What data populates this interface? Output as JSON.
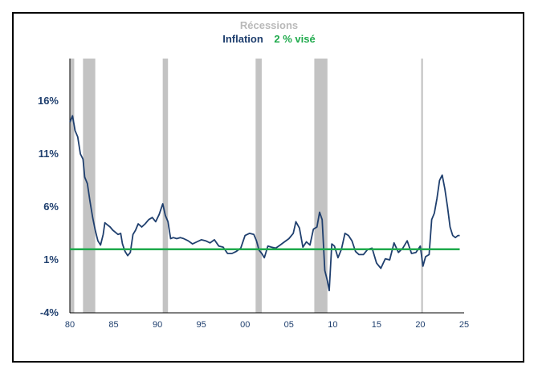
{
  "chart_data": {
    "type": "line",
    "title": "",
    "xlabel": "",
    "ylabel": "",
    "legend": {
      "placement": "top-center",
      "entries": [
        "Récessions",
        "Inflation",
        "2 % visé"
      ]
    },
    "xlim": [
      1980,
      2025
    ],
    "ylim": [
      -4,
      20
    ],
    "x_ticks": [
      1980,
      1985,
      1990,
      1995,
      2000,
      2005,
      2010,
      2015,
      2020,
      2025
    ],
    "x_tick_labels": [
      "80",
      "85",
      "90",
      "95",
      "00",
      "05",
      "10",
      "15",
      "20",
      "25"
    ],
    "y_ticks": [
      -4,
      1,
      6,
      11,
      16
    ],
    "y_tick_labels": [
      "-4%",
      "1%",
      "6%",
      "11%",
      "16%"
    ],
    "grid": false,
    "recessions": [
      {
        "start": 1980.0,
        "end": 1980.5
      },
      {
        "start": 1981.5,
        "end": 1982.9
      },
      {
        "start": 1990.6,
        "end": 1991.2
      },
      {
        "start": 2001.2,
        "end": 2001.9
      },
      {
        "start": 2007.9,
        "end": 2009.4
      },
      {
        "start": 2020.1,
        "end": 2020.3
      }
    ],
    "series": [
      {
        "name": "Inflation",
        "color": "#1f3f6e",
        "x": [
          1980.0,
          1980.3,
          1980.6,
          1980.9,
          1981.2,
          1981.5,
          1981.7,
          1982.0,
          1982.3,
          1982.6,
          1982.9,
          1983.2,
          1983.5,
          1983.8,
          1984.0,
          1984.3,
          1984.6,
          1984.9,
          1985.2,
          1985.5,
          1985.8,
          1986.0,
          1986.3,
          1986.6,
          1986.9,
          1987.2,
          1987.5,
          1987.8,
          1988.2,
          1988.6,
          1989.0,
          1989.4,
          1989.8,
          1990.2,
          1990.6,
          1990.9,
          1991.2,
          1991.5,
          1991.8,
          1992.2,
          1992.6,
          1993.0,
          1993.5,
          1994.0,
          1994.5,
          1995.0,
          1995.5,
          1996.0,
          1996.5,
          1997.0,
          1997.5,
          1998.0,
          1998.5,
          1999.0,
          1999.5,
          2000.0,
          2000.5,
          2001.0,
          2001.3,
          2001.6,
          2001.9,
          2002.2,
          2002.6,
          2003.0,
          2003.5,
          2004.0,
          2004.5,
          2005.0,
          2005.5,
          2005.8,
          2006.2,
          2006.6,
          2007.0,
          2007.4,
          2007.8,
          2008.2,
          2008.5,
          2008.8,
          2009.1,
          2009.4,
          2009.6,
          2009.9,
          2010.2,
          2010.6,
          2011.0,
          2011.4,
          2011.8,
          2012.2,
          2012.6,
          2013.0,
          2013.5,
          2014.0,
          2014.5,
          2015.0,
          2015.5,
          2016.0,
          2016.5,
          2017.0,
          2017.5,
          2018.0,
          2018.5,
          2019.0,
          2019.5,
          2020.0,
          2020.3,
          2020.6,
          2021.0,
          2021.3,
          2021.6,
          2021.9,
          2022.2,
          2022.5,
          2022.8,
          2023.1,
          2023.4,
          2023.7,
          2024.0,
          2024.3,
          2024.5
        ],
        "y": [
          14.0,
          14.6,
          13.2,
          12.6,
          11.0,
          10.5,
          8.8,
          8.2,
          6.5,
          5.0,
          3.8,
          2.8,
          2.4,
          3.4,
          4.5,
          4.3,
          4.1,
          3.8,
          3.6,
          3.4,
          3.5,
          2.5,
          1.8,
          1.4,
          1.7,
          3.4,
          3.8,
          4.4,
          4.1,
          4.4,
          4.8,
          5.0,
          4.6,
          5.3,
          6.3,
          5.2,
          4.6,
          3.0,
          3.1,
          3.0,
          3.1,
          3.0,
          2.8,
          2.5,
          2.7,
          2.9,
          2.8,
          2.6,
          2.9,
          2.3,
          2.2,
          1.6,
          1.6,
          1.8,
          2.1,
          3.3,
          3.5,
          3.4,
          2.8,
          1.9,
          1.6,
          1.2,
          2.3,
          2.2,
          2.1,
          2.4,
          2.7,
          3.0,
          3.5,
          4.6,
          4.0,
          2.2,
          2.7,
          2.4,
          3.9,
          4.1,
          5.5,
          4.8,
          0.0,
          -1.0,
          -1.9,
          2.5,
          2.3,
          1.2,
          2.0,
          3.5,
          3.3,
          2.8,
          1.8,
          1.5,
          1.5,
          2.0,
          2.1,
          0.7,
          0.2,
          1.1,
          1.0,
          2.6,
          1.7,
          2.1,
          2.8,
          1.6,
          1.7,
          2.3,
          0.4,
          1.3,
          1.5,
          4.8,
          5.4,
          6.8,
          8.5,
          9.0,
          7.7,
          6.0,
          4.1,
          3.3,
          3.1,
          3.3,
          3.3
        ]
      },
      {
        "name": "2 % visé",
        "color": "#1faa4c",
        "x": [
          1980.0,
          2024.5
        ],
        "y": [
          2,
          2
        ]
      }
    ],
    "recession_color": "#c3c3c3"
  }
}
